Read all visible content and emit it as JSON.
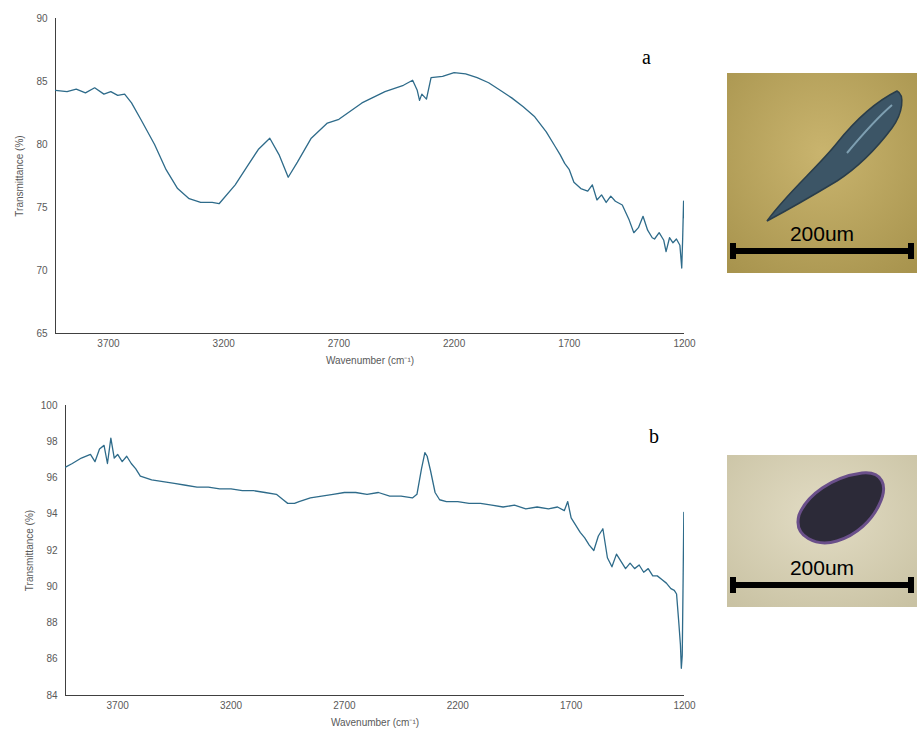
{
  "chart_data": [
    {
      "type": "line",
      "panel_label": "a",
      "scale_bar_label": "200um",
      "xlabel": "Wavenumber (cm⁻¹)",
      "ylabel": "Transmittance (%)",
      "color": "#2e6b8a",
      "xlim": [
        3930,
        1200
      ],
      "xticks": [
        3700,
        3200,
        2700,
        2200,
        1700,
        1200
      ],
      "ylim": [
        65,
        90
      ],
      "yticks": [
        65,
        70,
        75,
        80,
        85,
        90
      ],
      "x": [
        3930,
        3880,
        3840,
        3800,
        3760,
        3720,
        3690,
        3660,
        3630,
        3600,
        3560,
        3500,
        3450,
        3400,
        3350,
        3300,
        3250,
        3220,
        3150,
        3100,
        3050,
        3000,
        2960,
        2920,
        2880,
        2820,
        2750,
        2700,
        2600,
        2500,
        2420,
        2380,
        2360,
        2350,
        2340,
        2320,
        2300,
        2250,
        2200,
        2150,
        2100,
        2050,
        2000,
        1950,
        1900,
        1850,
        1800,
        1760,
        1740,
        1720,
        1700,
        1680,
        1650,
        1620,
        1600,
        1580,
        1560,
        1540,
        1520,
        1500,
        1470,
        1440,
        1420,
        1400,
        1380,
        1360,
        1340,
        1330,
        1310,
        1290,
        1280,
        1265,
        1250,
        1235,
        1220,
        1212,
        1208,
        1204,
        1202,
        1200
      ],
      "values": [
        84.3,
        84.2,
        84.4,
        84.1,
        84.5,
        84.0,
        84.2,
        83.9,
        84.0,
        83.3,
        82.0,
        80.0,
        78.0,
        76.5,
        75.7,
        75.4,
        75.4,
        75.3,
        76.8,
        78.2,
        79.6,
        80.5,
        79.2,
        77.4,
        78.6,
        80.5,
        81.7,
        82.0,
        83.3,
        84.2,
        84.7,
        85.1,
        84.3,
        83.5,
        84.0,
        83.6,
        85.3,
        85.4,
        85.7,
        85.6,
        85.3,
        84.9,
        84.3,
        83.7,
        83.0,
        82.2,
        81.0,
        79.8,
        79.2,
        78.5,
        78.0,
        77.0,
        76.5,
        76.3,
        76.8,
        75.6,
        76.0,
        75.4,
        75.9,
        75.5,
        75.2,
        74.0,
        73.0,
        73.4,
        74.3,
        73.2,
        72.6,
        72.5,
        73.0,
        72.4,
        71.5,
        72.6,
        72.2,
        72.5,
        72.0,
        70.2,
        72.5,
        75.5,
        74.2,
        74.7
      ]
    },
    {
      "type": "line",
      "panel_label": "b",
      "scale_bar_label": "200um",
      "xlabel": "Wavenumber (cm⁻¹)",
      "ylabel": "Transmittance (%)",
      "color": "#2e6b8a",
      "xlim": [
        3930,
        1200
      ],
      "xticks": [
        3700,
        3200,
        2700,
        2200,
        1700,
        1200
      ],
      "ylim": [
        84,
        100
      ],
      "yticks": [
        84,
        86,
        88,
        90,
        92,
        94,
        96,
        98,
        100
      ],
      "x": [
        3930,
        3900,
        3860,
        3820,
        3800,
        3780,
        3760,
        3745,
        3730,
        3715,
        3700,
        3680,
        3660,
        3640,
        3620,
        3600,
        3550,
        3500,
        3450,
        3400,
        3350,
        3300,
        3250,
        3200,
        3150,
        3100,
        3050,
        3000,
        2970,
        2950,
        2920,
        2900,
        2850,
        2800,
        2750,
        2700,
        2650,
        2600,
        2550,
        2500,
        2450,
        2400,
        2380,
        2360,
        2345,
        2335,
        2320,
        2300,
        2280,
        2250,
        2200,
        2150,
        2100,
        2050,
        2000,
        1950,
        1900,
        1850,
        1800,
        1760,
        1730,
        1715,
        1700,
        1680,
        1660,
        1640,
        1620,
        1600,
        1580,
        1560,
        1540,
        1520,
        1500,
        1480,
        1460,
        1440,
        1420,
        1400,
        1380,
        1360,
        1340,
        1320,
        1300,
        1280,
        1260,
        1245,
        1235,
        1225,
        1218,
        1214,
        1210,
        1206,
        1203
      ],
      "values": [
        96.6,
        96.8,
        97.1,
        97.3,
        96.9,
        97.6,
        97.8,
        96.8,
        98.2,
        97.1,
        97.3,
        96.9,
        97.2,
        96.8,
        96.5,
        96.1,
        95.9,
        95.8,
        95.7,
        95.6,
        95.5,
        95.5,
        95.4,
        95.4,
        95.3,
        95.3,
        95.2,
        95.1,
        94.8,
        94.6,
        94.6,
        94.7,
        94.9,
        95.0,
        95.1,
        95.2,
        95.2,
        95.1,
        95.2,
        95.0,
        95.0,
        94.9,
        95.1,
        96.5,
        97.4,
        97.2,
        96.4,
        95.2,
        94.8,
        94.7,
        94.7,
        94.6,
        94.6,
        94.5,
        94.4,
        94.5,
        94.3,
        94.4,
        94.3,
        94.4,
        94.2,
        94.7,
        93.8,
        93.4,
        93.0,
        92.7,
        92.3,
        92.0,
        92.8,
        93.2,
        91.6,
        91.1,
        91.8,
        91.4,
        91.0,
        91.3,
        91.0,
        91.2,
        90.8,
        91.0,
        90.6,
        90.6,
        90.4,
        90.2,
        89.9,
        89.8,
        89.6,
        88.0,
        86.8,
        85.5,
        86.2,
        90.5,
        94.1
      ]
    }
  ]
}
